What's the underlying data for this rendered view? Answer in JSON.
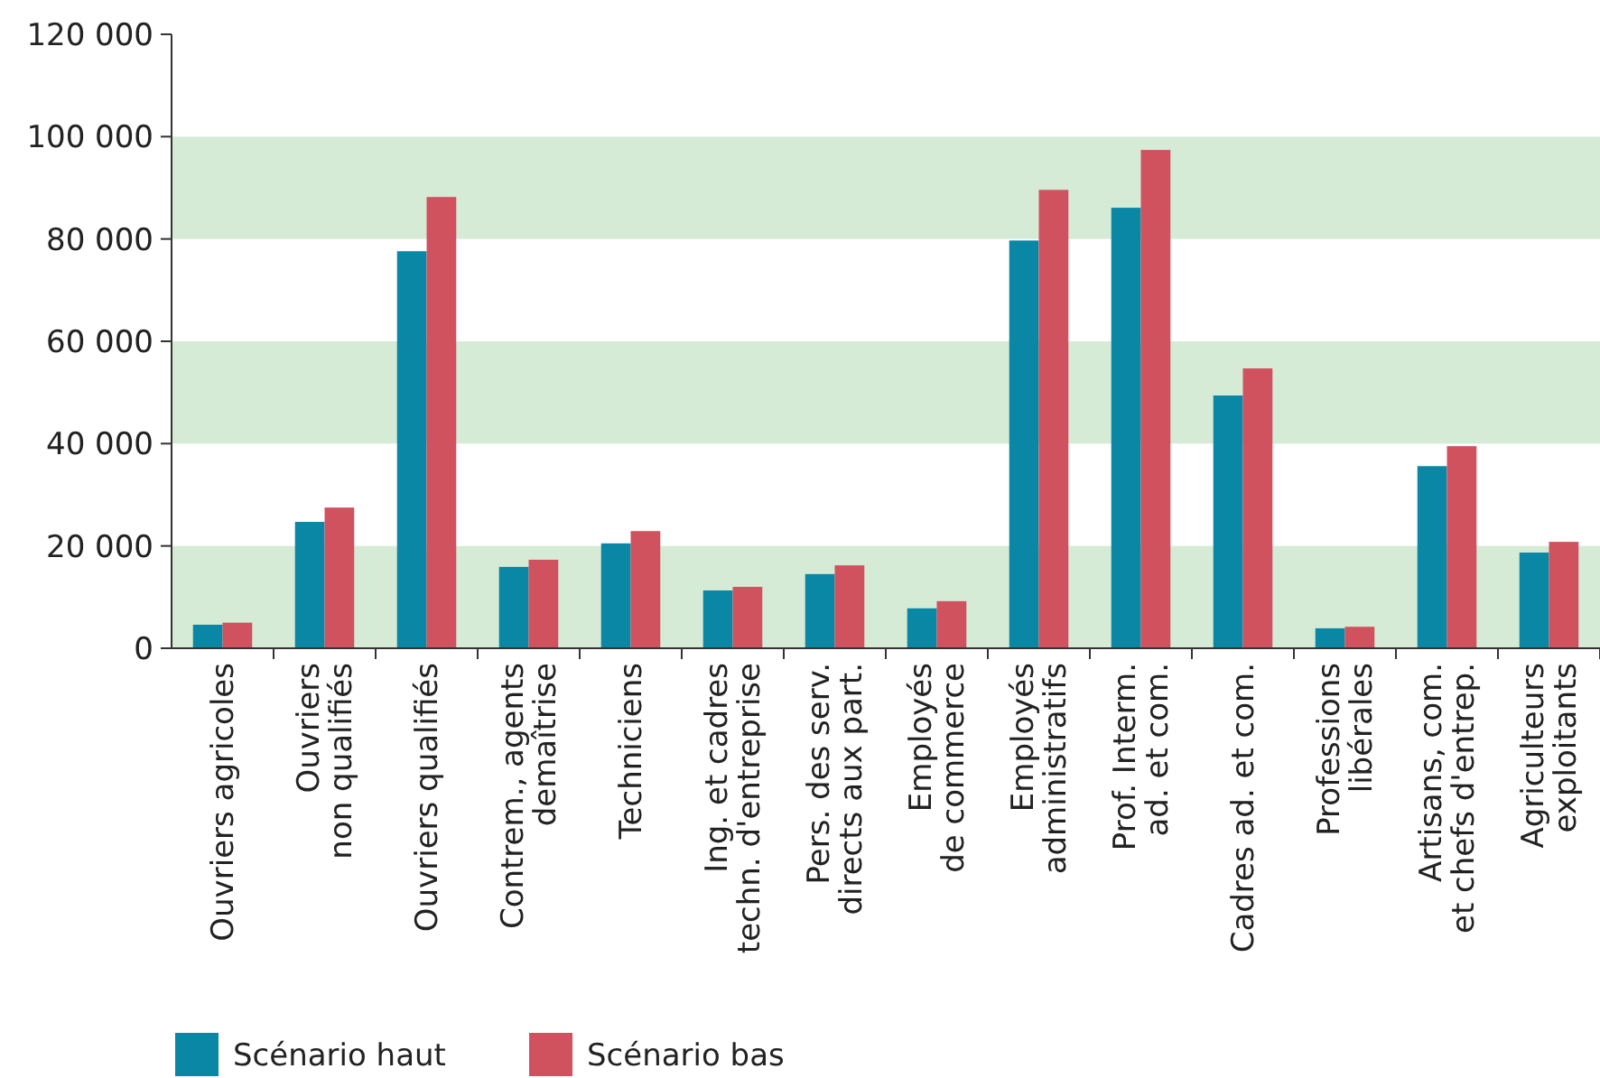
{
  "chart_data": {
    "type": "bar",
    "categories": [
      "Ouvriers agricoles",
      "Ouvriers\nnon qualifiés",
      "Ouvriers qualifiés",
      "Contrem., agents\ndemaîtrise",
      "Techniciens",
      "Ing. et cadres\ntechn. d'entreprise",
      "Pers. des serv.\ndirects aux part.",
      "Employés\nde commerce",
      "Employés\nadministratifs",
      "Prof. Interm.\nad. et com.",
      "Cadres ad. et com.",
      "Professions\nlibérales",
      "Artisans, com.\net chefs d'entrep.",
      "Agriculteurs\nexploitants"
    ],
    "series": [
      {
        "name": "Scénario haut",
        "color": "#0a87a5",
        "values": [
          4600,
          24700,
          77600,
          15900,
          20500,
          11300,
          14500,
          7800,
          79700,
          86100,
          49400,
          3900,
          35600,
          18700
        ]
      },
      {
        "name": "Scénario bas",
        "color": "#d0525f",
        "values": [
          5000,
          27500,
          88200,
          17300,
          22900,
          12000,
          16200,
          9200,
          89600,
          97400,
          54700,
          4200,
          39500,
          20800
        ]
      }
    ],
    "ylim": [
      0,
      120000
    ],
    "yticks": [
      {
        "value": 0,
        "label": "0"
      },
      {
        "value": 20000,
        "label": "20 000"
      },
      {
        "value": 40000,
        "label": "40 000"
      },
      {
        "value": 60000,
        "label": "60 000"
      },
      {
        "value": 80000,
        "label": "80 000"
      },
      {
        "value": 100000,
        "label": "100 000"
      },
      {
        "value": 120000,
        "label": "120 000"
      }
    ],
    "bands": [
      {
        "axis": "y",
        "from": 0,
        "to": 20000,
        "color": "#d6ebd6"
      },
      {
        "axis": "y",
        "from": 40000,
        "to": 60000,
        "color": "#d6ebd6"
      },
      {
        "axis": "y",
        "from": 80000,
        "to": 100000,
        "color": "#d6ebd6"
      }
    ],
    "legend": "bottom left",
    "grid": false
  }
}
